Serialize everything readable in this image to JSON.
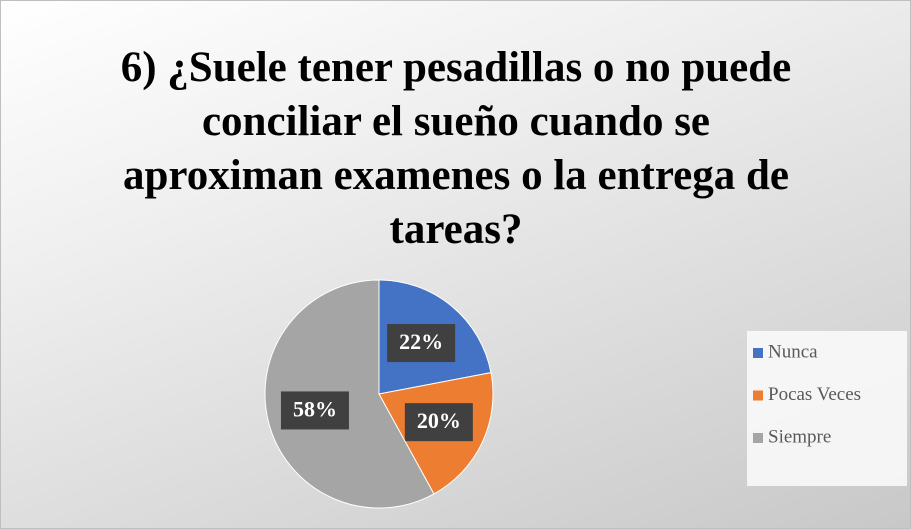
{
  "chart_data": {
    "type": "pie",
    "title": "6) ¿Suele tener pesadillas o no puede conciliar el sueño cuando se aproximan examenes o la entrega de tareas?",
    "categories": [
      "Nunca",
      "Pocas Veces",
      "Siempre"
    ],
    "values": [
      22,
      20,
      58
    ],
    "value_labels": [
      "22%",
      "20%",
      "58%"
    ],
    "colors": [
      "#4472c4",
      "#ed7d31",
      "#a5a5a5"
    ],
    "legend": "right"
  }
}
